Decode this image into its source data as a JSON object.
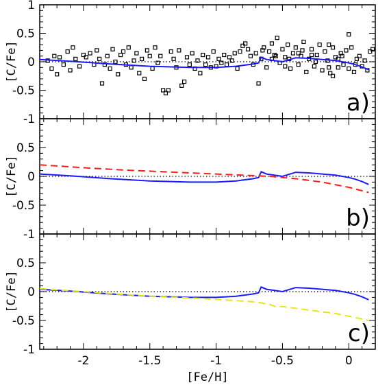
{
  "chart_data": [
    {
      "type": "scatter",
      "panel_label": "a)",
      "ylabel": "[C/Fe]",
      "xlabel": "",
      "xlim": [
        -2.33,
        0.2
      ],
      "ylim": [
        -1,
        1
      ],
      "yticks": [
        1,
        0.5,
        0,
        -0.5,
        -1
      ],
      "ytick_labels": [
        "1",
        "0.5",
        "0",
        "-0.5",
        "-1"
      ],
      "reference_line": 0,
      "colors": {
        "points": "#000000",
        "model": "#1a1aff",
        "reference": "#000000"
      },
      "points": [
        [
          -2.27,
          0.02
        ],
        [
          -2.24,
          -0.12
        ],
        [
          -2.22,
          0.1
        ],
        [
          -2.2,
          -0.22
        ],
        [
          -2.18,
          0.08
        ],
        [
          -2.15,
          -0.05
        ],
        [
          -2.12,
          0.18
        ],
        [
          -2.1,
          -0.15
        ],
        [
          -2.08,
          0.25
        ],
        [
          -2.06,
          0.05
        ],
        [
          -2.03,
          -0.08
        ],
        [
          -2.0,
          0.12
        ],
        [
          -1.98,
          0.08
        ],
        [
          -1.95,
          0.15
        ],
        [
          -1.92,
          -0.05
        ],
        [
          -1.9,
          0.2
        ],
        [
          -1.88,
          0.05
        ],
        [
          -1.86,
          -0.38
        ],
        [
          -1.84,
          -0.05
        ],
        [
          -1.82,
          0.1
        ],
        [
          -1.8,
          -0.12
        ],
        [
          -1.78,
          0.22
        ],
        [
          -1.76,
          0.0
        ],
        [
          -1.74,
          -0.22
        ],
        [
          -1.72,
          0.12
        ],
        [
          -1.7,
          0.18
        ],
        [
          -1.68,
          -0.05
        ],
        [
          -1.66,
          0.25
        ],
        [
          -1.64,
          -0.1
        ],
        [
          -1.62,
          0.02
        ],
        [
          -1.6,
          0.15
        ],
        [
          -1.58,
          -0.2
        ],
        [
          -1.56,
          0.05
        ],
        [
          -1.54,
          -0.3
        ],
        [
          -1.52,
          0.2
        ],
        [
          -1.5,
          0.1
        ],
        [
          -1.48,
          -0.12
        ],
        [
          -1.46,
          0.25
        ],
        [
          -1.44,
          -0.02
        ],
        [
          -1.42,
          0.1
        ],
        [
          -1.4,
          -0.5
        ],
        [
          -1.38,
          -0.55
        ],
        [
          -1.36,
          -0.5
        ],
        [
          -1.34,
          0.18
        ],
        [
          -1.32,
          0.05
        ],
        [
          -1.3,
          -0.1
        ],
        [
          -1.28,
          0.2
        ],
        [
          -1.26,
          -0.42
        ],
        [
          -1.24,
          -0.35
        ],
        [
          -1.22,
          0.08
        ],
        [
          -1.2,
          -0.05
        ],
        [
          -1.18,
          0.15
        ],
        [
          -1.16,
          -0.12
        ],
        [
          -1.14,
          0.02
        ],
        [
          -1.12,
          -0.2
        ],
        [
          -1.1,
          0.12
        ],
        [
          -1.08,
          -0.05
        ],
        [
          -1.06,
          0.08
        ],
        [
          -1.04,
          -0.1
        ],
        [
          -1.02,
          0.18
        ],
        [
          -1.0,
          -0.08
        ],
        [
          -0.98,
          0.05
        ],
        [
          -0.96,
          -0.02
        ],
        [
          -0.94,
          0.12
        ],
        [
          -0.92,
          -0.05
        ],
        [
          -0.9,
          0.08
        ],
        [
          -0.88,
          0.02
        ],
        [
          -0.86,
          0.15
        ],
        [
          -0.84,
          -0.12
        ],
        [
          -0.82,
          0.18
        ],
        [
          -0.8,
          0.28
        ],
        [
          -0.78,
          0.32
        ],
        [
          -0.76,
          0.22
        ],
        [
          -0.74,
          0.1
        ],
        [
          -0.72,
          -0.05
        ],
        [
          -0.7,
          0.15
        ],
        [
          -0.68,
          -0.38
        ],
        [
          -0.66,
          0.05
        ],
        [
          -0.64,
          0.25
        ],
        [
          -0.62,
          -0.1
        ],
        [
          -0.6,
          0.18
        ],
        [
          -0.58,
          0.32
        ],
        [
          -0.56,
          0.12
        ],
        [
          -0.54,
          0.42
        ],
        [
          -0.52,
          -0.02
        ],
        [
          -0.5,
          0.22
        ],
        [
          -0.48,
          0.08
        ],
        [
          -0.46,
          0.3
        ],
        [
          -0.44,
          -0.12
        ],
        [
          -0.42,
          0.15
        ],
        [
          -0.4,
          0.25
        ],
        [
          -0.38,
          -0.05
        ],
        [
          -0.36,
          0.1
        ],
        [
          -0.34,
          0.35
        ],
        [
          -0.32,
          -0.18
        ],
        [
          -0.3,
          0.05
        ],
        [
          -0.28,
          0.22
        ],
        [
          -0.26,
          -0.08
        ],
        [
          -0.24,
          0.12
        ],
        [
          -0.22,
          0.3
        ],
        [
          -0.2,
          -0.15
        ],
        [
          -0.18,
          0.18
        ],
        [
          -0.16,
          0.02
        ],
        [
          -0.14,
          -0.2
        ],
        [
          -0.12,
          0.25
        ],
        [
          -0.1,
          0.08
        ],
        [
          -0.08,
          -0.1
        ],
        [
          -0.06,
          0.15
        ],
        [
          -0.04,
          -0.05
        ],
        [
          -0.02,
          0.2
        ],
        [
          0.0,
          -0.12
        ],
        [
          0.02,
          0.25
        ],
        [
          0.04,
          -0.18
        ],
        [
          0.06,
          0.05
        ],
        [
          0.08,
          0.1
        ],
        [
          0.1,
          -0.08
        ],
        [
          0.12,
          0.02
        ],
        [
          0.14,
          -0.15
        ],
        [
          0.16,
          0.18
        ],
        [
          0.18,
          0.22
        ],
        [
          -0.45,
          0.05
        ],
        [
          -0.35,
          0.2
        ],
        [
          -0.25,
          0.0
        ],
        [
          -0.15,
          0.3
        ],
        [
          -0.05,
          0.1
        ],
        [
          0.05,
          -0.05
        ],
        [
          -0.55,
          0.1
        ],
        [
          -0.65,
          0.2
        ],
        [
          -0.15,
          -0.1
        ],
        [
          -0.08,
          0.05
        ],
        [
          -0.28,
          0.12
        ],
        [
          -0.38,
          0.15
        ],
        [
          -0.48,
          -0.08
        ],
        [
          -0.58,
          0.05
        ],
        [
          0.0,
          0.48
        ],
        [
          -0.12,
          -0.25
        ]
      ],
      "model_line": {
        "x": [
          -2.33,
          -2.1,
          -1.8,
          -1.5,
          -1.2,
          -1.0,
          -0.85,
          -0.72,
          -0.68,
          -0.66,
          -0.62,
          -0.56,
          -0.5,
          -0.4,
          -0.3,
          -0.2,
          -0.1,
          0.0,
          0.05,
          0.1,
          0.15
        ],
        "y": [
          0.04,
          0.01,
          -0.04,
          -0.08,
          -0.1,
          -0.1,
          -0.08,
          -0.04,
          -0.02,
          0.08,
          0.04,
          0.02,
          0.0,
          0.07,
          0.06,
          0.04,
          0.02,
          -0.02,
          -0.05,
          -0.09,
          -0.14
        ]
      }
    },
    {
      "type": "line",
      "panel_label": "b)",
      "ylabel": "[C/Fe]",
      "xlabel": "",
      "xlim": [
        -2.33,
        0.2
      ],
      "ylim": [
        -1,
        1
      ],
      "yticks": [
        0.5,
        0,
        -0.5,
        -1
      ],
      "ytick_labels": [
        "0.5",
        "0",
        "-0.5",
        "-1"
      ],
      "reference_line": 0,
      "series": [
        {
          "color": "#1a1aff",
          "style": "solid",
          "x": [
            -2.33,
            -2.1,
            -1.8,
            -1.5,
            -1.2,
            -1.0,
            -0.85,
            -0.72,
            -0.68,
            -0.66,
            -0.62,
            -0.56,
            -0.5,
            -0.4,
            -0.3,
            -0.2,
            -0.1,
            0.0,
            0.05,
            0.1,
            0.15
          ],
          "y": [
            0.04,
            0.01,
            -0.04,
            -0.08,
            -0.1,
            -0.1,
            -0.08,
            -0.04,
            -0.02,
            0.08,
            0.04,
            0.02,
            0.0,
            0.07,
            0.06,
            0.04,
            0.02,
            -0.02,
            -0.05,
            -0.09,
            -0.14
          ]
        },
        {
          "color": "#ff1a1a",
          "style": "dashed",
          "x": [
            -2.33,
            -2.0,
            -1.7,
            -1.4,
            -1.1,
            -0.8,
            -0.6,
            -0.4,
            -0.2,
            0.0,
            0.15
          ],
          "y": [
            0.2,
            0.15,
            0.11,
            0.08,
            0.05,
            0.02,
            0.0,
            -0.04,
            -0.1,
            -0.19,
            -0.28
          ]
        }
      ]
    },
    {
      "type": "line",
      "panel_label": "c)",
      "ylabel": "[C/Fe]",
      "xlabel": "[Fe/H]",
      "xlim": [
        -2.33,
        0.2
      ],
      "ylim": [
        -1,
        1
      ],
      "yticks": [
        0.5,
        0,
        -0.5,
        -1
      ],
      "ytick_labels": [
        "0.5",
        "0",
        "-0.5",
        "-1"
      ],
      "xticks": [
        -2,
        -1.5,
        -1,
        -0.5,
        0
      ],
      "xtick_labels": [
        "-2",
        "-1.5",
        "-1",
        "-0.5",
        "0"
      ],
      "reference_line": 0,
      "series": [
        {
          "color": "#1a1aff",
          "style": "solid",
          "x": [
            -2.33,
            -2.1,
            -1.8,
            -1.5,
            -1.2,
            -1.0,
            -0.85,
            -0.72,
            -0.68,
            -0.66,
            -0.62,
            -0.56,
            -0.5,
            -0.4,
            -0.3,
            -0.2,
            -0.1,
            0.0,
            0.05,
            0.1,
            0.15
          ],
          "y": [
            0.04,
            0.01,
            -0.04,
            -0.08,
            -0.1,
            -0.1,
            -0.08,
            -0.04,
            -0.02,
            0.08,
            0.04,
            0.02,
            0.0,
            0.07,
            0.06,
            0.04,
            0.02,
            -0.02,
            -0.05,
            -0.09,
            -0.14
          ]
        },
        {
          "color": "#e6e61a",
          "style": "dashed",
          "x": [
            -2.33,
            -2.0,
            -1.7,
            -1.4,
            -1.1,
            -0.9,
            -0.7,
            -0.6,
            -0.55,
            -0.5,
            -0.3,
            -0.1,
            0.05,
            0.15
          ],
          "y": [
            0.05,
            0.0,
            -0.05,
            -0.09,
            -0.12,
            -0.15,
            -0.18,
            -0.22,
            -0.26,
            -0.26,
            -0.32,
            -0.38,
            -0.45,
            -0.5
          ]
        }
      ]
    }
  ]
}
